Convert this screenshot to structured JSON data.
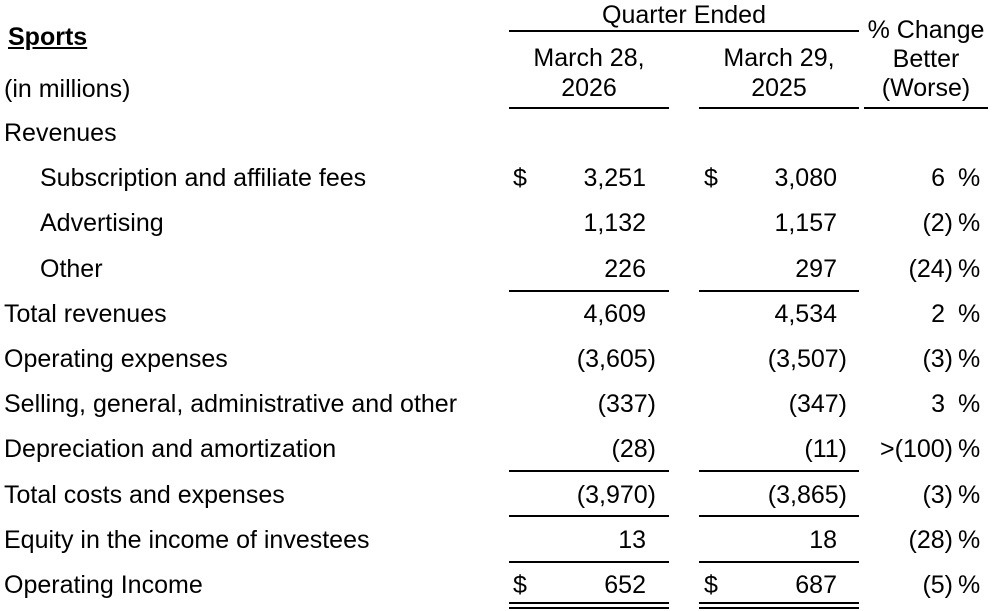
{
  "header": {
    "title": "Sports",
    "units": "(in millions)",
    "quarter_ended": "Quarter Ended",
    "col1_line1": "March 28,",
    "col1_line2": "2026",
    "col2_line1": "March 29,",
    "col2_line2": "2025",
    "pct_line1": "% Change",
    "pct_line2": "Better",
    "pct_line3": "(Worse)"
  },
  "currency_symbol": "$",
  "pct_symbol": "%",
  "rows": [
    {
      "label": "Revenues",
      "indent": false,
      "v1": "",
      "v2": "",
      "pct": "",
      "dollar": false
    },
    {
      "label": "Subscription and affiliate fees",
      "indent": true,
      "v1": "3,251",
      "v2": "3,080",
      "pct": "6",
      "dollar": true
    },
    {
      "label": "Advertising",
      "indent": true,
      "v1": "1,132",
      "v2": "1,157",
      "pct": "(2)",
      "dollar": false
    },
    {
      "label": "Other",
      "indent": true,
      "v1": "226",
      "v2": "297",
      "pct": "(24)",
      "dollar": false
    },
    {
      "label": "Total revenues",
      "indent": false,
      "v1": "4,609",
      "v2": "4,534",
      "pct": "2",
      "dollar": false
    },
    {
      "label": "Operating expenses",
      "indent": false,
      "v1": "(3,605)",
      "v2": "(3,507)",
      "pct": "(3)",
      "dollar": false
    },
    {
      "label": "Selling, general, administrative and other",
      "indent": false,
      "v1": "(337)",
      "v2": "(347)",
      "pct": "3",
      "dollar": false
    },
    {
      "label": "Depreciation and amortization",
      "indent": false,
      "v1": "(28)",
      "v2": "(11)",
      "pct": ">(100)",
      "dollar": false
    },
    {
      "label": "Total costs and expenses",
      "indent": false,
      "v1": "(3,970)",
      "v2": "(3,865)",
      "pct": "(3)",
      "dollar": false
    },
    {
      "label": "Equity in the income of investees",
      "indent": false,
      "v1": "13",
      "v2": "18",
      "pct": "(28)",
      "dollar": false
    },
    {
      "label": "Operating Income",
      "indent": false,
      "v1": "652",
      "v2": "687",
      "pct": "(5)",
      "dollar": true
    }
  ]
}
